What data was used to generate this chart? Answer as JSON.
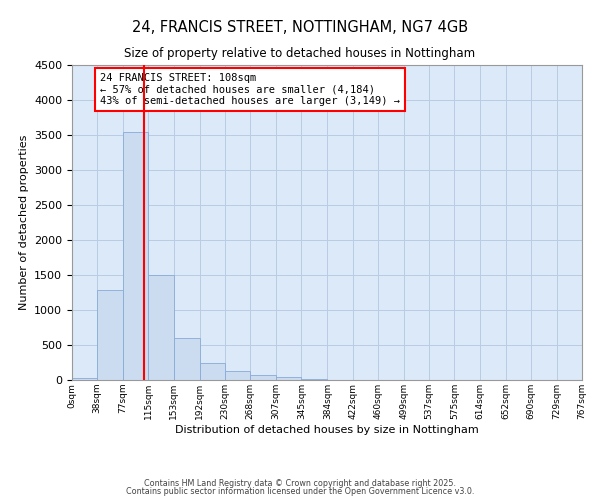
{
  "title_line1": "24, FRANCIS STREET, NOTTINGHAM, NG7 4GB",
  "title_line2": "Size of property relative to detached houses in Nottingham",
  "xlabel": "Distribution of detached houses by size in Nottingham",
  "ylabel": "Number of detached properties",
  "bin_edges": [
    0,
    38,
    77,
    115,
    153,
    192,
    230,
    268,
    307,
    345,
    384,
    422,
    460,
    499,
    537,
    575,
    614,
    652,
    690,
    729,
    767
  ],
  "bar_heights": [
    30,
    1290,
    3540,
    1500,
    600,
    240,
    130,
    70,
    40,
    10,
    5,
    2,
    0,
    0,
    0,
    0,
    0,
    0,
    0,
    2
  ],
  "bar_color": "#ccdcf0",
  "bar_edge_color": "#88aad8",
  "ylim": [
    0,
    4500
  ],
  "yticks": [
    0,
    500,
    1000,
    1500,
    2000,
    2500,
    3000,
    3500,
    4000,
    4500
  ],
  "vline_x": 108,
  "vline_color": "red",
  "annotation_title": "24 FRANCIS STREET: 108sqm",
  "annotation_line2": "← 57% of detached houses are smaller (4,184)",
  "annotation_line3": "43% of semi-detached houses are larger (3,149) →",
  "annotation_box_color": "white",
  "annotation_box_edge": "red",
  "grid_color": "#b8cce4",
  "bg_color": "#dce9f8",
  "footer_line1": "Contains HM Land Registry data © Crown copyright and database right 2025.",
  "footer_line2": "Contains public sector information licensed under the Open Government Licence v3.0.",
  "xtick_labels": [
    "0sqm",
    "38sqm",
    "77sqm",
    "115sqm",
    "153sqm",
    "192sqm",
    "230sqm",
    "268sqm",
    "307sqm",
    "345sqm",
    "384sqm",
    "422sqm",
    "460sqm",
    "499sqm",
    "537sqm",
    "575sqm",
    "614sqm",
    "652sqm",
    "690sqm",
    "729sqm",
    "767sqm"
  ]
}
